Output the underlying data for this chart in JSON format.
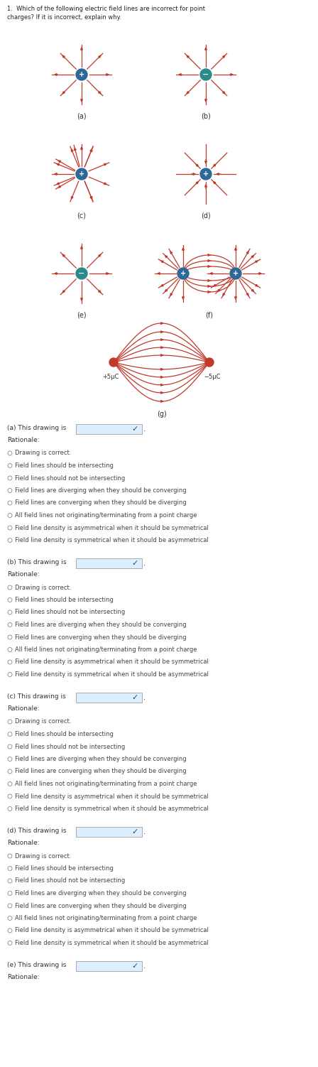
{
  "title": "1.  Which of the following electric field lines are incorrect for point charges? If it is incorrect, explain why.",
  "bg_color": "#ffffff",
  "text_color": "#333333",
  "arrow_color": "#c0392b",
  "pos_charge_color": "#2c6898",
  "neg_charge_color": "#2a8a8a",
  "dropdown_bg": "#ddeeff",
  "dropdown_border": "#777777",
  "radio_options": [
    "Drawing is correct.",
    "Field lines should be intersecting",
    "Field lines should not be intersecting",
    "Field lines are diverging when they should be converging",
    "Field lines are converging when they should be diverging",
    "All field lines not originating/terminating from a point charge",
    "Field line density is asymmetrical when it should be symmetrical",
    "Field line density is symmetrical when it should be asymmetrical"
  ],
  "sections": [
    {
      "label": "(a) This drawing is"
    },
    {
      "label": "(b) This drawing is"
    },
    {
      "label": "(c) This drawing is"
    },
    {
      "label": "(d) This drawing is"
    },
    {
      "label": "(e) This drawing is"
    }
  ]
}
